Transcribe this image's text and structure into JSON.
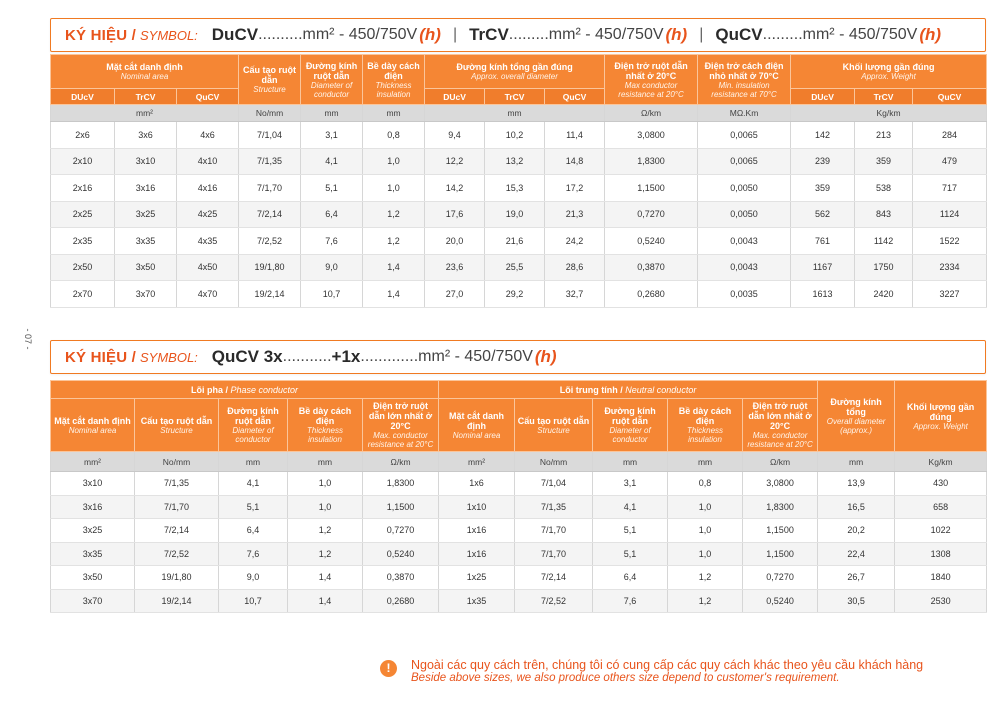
{
  "page_number": "- 07 -",
  "section1": {
    "title": {
      "ky_hieu": "KÝ HIỆU /",
      "symbol": "SYMBOL:",
      "code1": "DuCV",
      "text1": "..........mm² - 450/750V",
      "h1": "(h)",
      "sep1": "|",
      "code2": "TrCV",
      "text2": ".........mm² - 450/750V",
      "h2": "(h)",
      "sep2": "|",
      "code3": "QuCV",
      "text3": ".........mm² - 450/750V",
      "h3": "(h)"
    },
    "headers": {
      "area_vi": "Mặt cắt danh định",
      "area_en": "Nominal area",
      "structure_vi": "Cấu tạo ruột dẫn",
      "structure_en": "Structure",
      "diameter_vi": "Đường kính ruột dẫn",
      "diameter_en": "Diameter of conductor",
      "thickness_vi": "Bề dày cách điện",
      "thickness_en": "Thickness insulation",
      "overall_vi": "Đường kính tổng gần đúng",
      "overall_en": "Approx. overall diameter",
      "resistance_vi": "Điện trở ruột dẫn nhất ở 20°C",
      "resistance_en": "Max conductor resistance at 20°C",
      "insres_vi": "Điện trở cách điện nhỏ nhất ở 70°C",
      "insres_en": "Min. insulation resistance at 70°C",
      "weight_vi": "Khối lượng gần đúng",
      "weight_en": "Approx. Weight",
      "sub_ducv": "DUcV",
      "sub_trcv": "TrCV",
      "sub_qucv": "QuCV"
    },
    "units": [
      "mm²",
      "No/mm",
      "mm",
      "mm",
      "mm",
      "Ω/km",
      "MΩ.Km",
      "Kg/km"
    ],
    "rows": [
      [
        "2x6",
        "3x6",
        "4x6",
        "7/1,04",
        "3,1",
        "0,8",
        "9,4",
        "10,2",
        "11,4",
        "3,0800",
        "0,0065",
        "142",
        "213",
        "284"
      ],
      [
        "2x10",
        "3x10",
        "4x10",
        "7/1,35",
        "4,1",
        "1,0",
        "12,2",
        "13,2",
        "14,8",
        "1,8300",
        "0,0065",
        "239",
        "359",
        "479"
      ],
      [
        "2x16",
        "3x16",
        "4x16",
        "7/1,70",
        "5,1",
        "1,0",
        "14,2",
        "15,3",
        "17,2",
        "1,1500",
        "0,0050",
        "359",
        "538",
        "717"
      ],
      [
        "2x25",
        "3x25",
        "4x25",
        "7/2,14",
        "6,4",
        "1,2",
        "17,6",
        "19,0",
        "21,3",
        "0,7270",
        "0,0050",
        "562",
        "843",
        "1124"
      ],
      [
        "2x35",
        "3x35",
        "4x35",
        "7/2,52",
        "7,6",
        "1,2",
        "20,0",
        "21,6",
        "24,2",
        "0,5240",
        "0,0043",
        "761",
        "1142",
        "1522"
      ],
      [
        "2x50",
        "3x50",
        "4x50",
        "19/1,80",
        "9,0",
        "1,4",
        "23,6",
        "25,5",
        "28,6",
        "0,3870",
        "0,0043",
        "1167",
        "1750",
        "2334"
      ],
      [
        "2x70",
        "3x70",
        "4x70",
        "19/2,14",
        "10,7",
        "1,4",
        "27,0",
        "29,2",
        "32,7",
        "0,2680",
        "0,0035",
        "1613",
        "2420",
        "3227"
      ]
    ]
  },
  "section2": {
    "title": {
      "ky_hieu": "KÝ HIỆU /",
      "symbol": "SYMBOL:",
      "code": "QuCV 3x",
      "text_a": "...........",
      "code_b": "+1x",
      "text_b": ".............mm² - 450/750V",
      "h": "(h)"
    },
    "headers": {
      "phase_vi": "Lõi pha /",
      "phase_en": "Phase conductor",
      "neutral_vi": "Lõi trung tính /",
      "neutral_en": "Neutral conductor",
      "area_vi": "Mặt cắt danh định",
      "area_en": "Nominal area",
      "structure_vi": "Cấu tạo ruột dẫn",
      "structure_en": "Structure",
      "diameter_vi": "Đường kính ruột dẫn",
      "diameter_en": "Diameter of conductor",
      "thickness_vi": "Bề dày cách điện",
      "thickness_en": "Thickness insulation",
      "resistance_vi": "Điện trở ruột dẫn lớn nhất ở 20°C",
      "resistance_en": "Max. conductor resistance at 20°C",
      "n_area_vi": "Mặt cắt danh định",
      "n_area_en": "Nominal area",
      "overall_vi": "Đường kính tổng",
      "overall_en": "Overall diameter (approx.)",
      "weight_vi": "Khối lượng gần đúng",
      "weight_en": "Approx. Weight"
    },
    "units": [
      "mm²",
      "No/mm",
      "mm",
      "mm",
      "Ω/km",
      "mm²",
      "No/mm",
      "mm",
      "mm",
      "Ω/km",
      "mm",
      "Kg/km"
    ],
    "rows": [
      [
        "3x10",
        "7/1,35",
        "4,1",
        "1,0",
        "1,8300",
        "1x6",
        "7/1,04",
        "3,1",
        "0,8",
        "3,0800",
        "13,9",
        "430"
      ],
      [
        "3x16",
        "7/1,70",
        "5,1",
        "1,0",
        "1,1500",
        "1x10",
        "7/1,35",
        "4,1",
        "1,0",
        "1,8300",
        "16,5",
        "658"
      ],
      [
        "3x25",
        "7/2,14",
        "6,4",
        "1,2",
        "0,7270",
        "1x16",
        "7/1,70",
        "5,1",
        "1,0",
        "1,1500",
        "20,2",
        "1022"
      ],
      [
        "3x35",
        "7/2,52",
        "7,6",
        "1,2",
        "0,5240",
        "1x16",
        "7/1,70",
        "5,1",
        "1,0",
        "1,1500",
        "22,4",
        "1308"
      ],
      [
        "3x50",
        "19/1,80",
        "9,0",
        "1,4",
        "0,3870",
        "1x25",
        "7/2,14",
        "6,4",
        "1,2",
        "0,7270",
        "26,7",
        "1840"
      ],
      [
        "3x70",
        "19/2,14",
        "10,7",
        "1,4",
        "0,2680",
        "1x35",
        "7/2,52",
        "7,6",
        "1,2",
        "0,5240",
        "30,5",
        "2530"
      ]
    ]
  },
  "note": {
    "icon": "exclamation-icon",
    "vi": "Ngoài các quy cách trên, chúng tôi có cung cấp các quy cách khác theo yêu cầu khách hàng",
    "en": "Beside above sizes, we also produce others size depend to customer's requirement."
  },
  "colors": {
    "accent": "#f58634",
    "title_red": "#e8541c",
    "unit_row": "#dadada"
  }
}
